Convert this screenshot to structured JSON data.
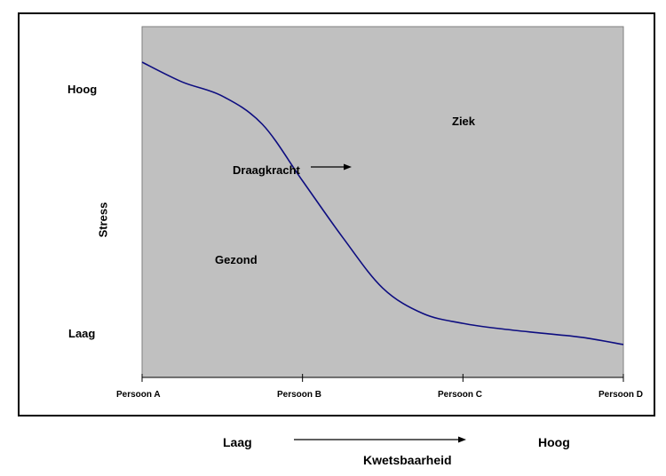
{
  "chart_data": {
    "type": "line",
    "xlabel": "Kwetsbaarheid",
    "ylabel": "Stress",
    "categories": [
      "Persoon A",
      "Persoon B",
      "Persoon C",
      "Persoon D"
    ],
    "y_levels": {
      "high": "Hoog",
      "low": "Laag"
    },
    "x_levels": {
      "low": "Laag",
      "high": "Hoog"
    },
    "regions": {
      "above": "Ziek",
      "below": "Gezond"
    },
    "series": [
      {
        "name": "Draagkracht",
        "x": [
          0,
          0.25,
          0.5,
          0.75,
          1.0,
          1.25,
          1.5,
          1.75,
          2.0,
          2.25,
          2.5,
          2.75,
          3.0
        ],
        "values": [
          1.0,
          0.93,
          0.88,
          0.78,
          0.58,
          0.38,
          0.2,
          0.11,
          0.075,
          0.055,
          0.04,
          0.025,
          0.0
        ]
      }
    ],
    "ylim": [
      0,
      1
    ],
    "xlim": [
      0,
      3
    ],
    "plot_background": "#c0c0c0",
    "line_color": "#0d0d80",
    "grid": false,
    "legend": "none"
  }
}
